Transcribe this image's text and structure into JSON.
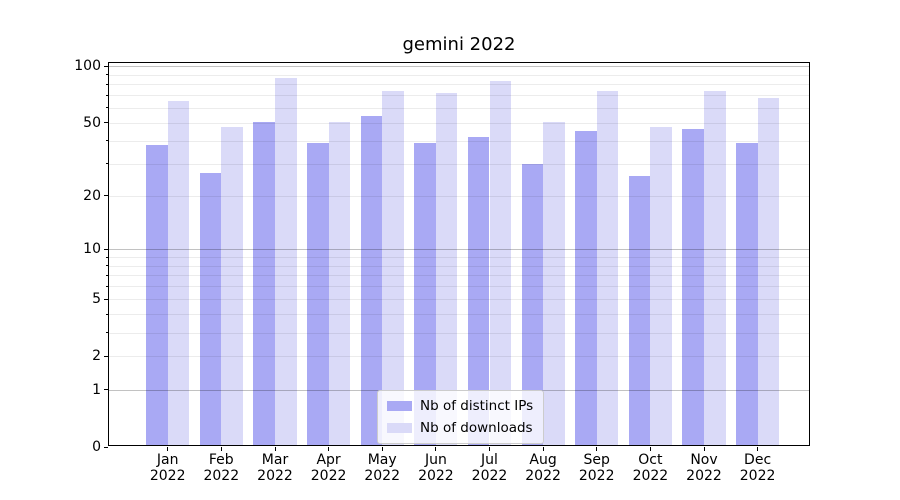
{
  "figure": {
    "title": "gemini 2022",
    "background": "#ffffff"
  },
  "chart_data": {
    "type": "bar",
    "title": "gemini 2022",
    "xlabel": "",
    "ylabel": "",
    "months": [
      "Jan",
      "Feb",
      "Mar",
      "Apr",
      "May",
      "Jun",
      "Jul",
      "Aug",
      "Sep",
      "Oct",
      "Nov",
      "Dec"
    ],
    "year": "2022",
    "categories": [
      "Jan 2022",
      "Feb 2022",
      "Mar 2022",
      "Apr 2022",
      "May 2022",
      "Jun 2022",
      "Jul 2022",
      "Aug 2022",
      "Sep 2022",
      "Oct 2022",
      "Nov 2022",
      "Dec 2022"
    ],
    "series": [
      {
        "name": "Nb of distinct IPs",
        "color": "#a9a9f4",
        "values": [
          37,
          26,
          49,
          38,
          53,
          38,
          41,
          29,
          44,
          25,
          45,
          38
        ]
      },
      {
        "name": "Nb of downloads",
        "color": "#dadaf8",
        "values": [
          64,
          46,
          84,
          49,
          72,
          70,
          81,
          49,
          72,
          46,
          72,
          66
        ]
      }
    ],
    "yscale": "log1p",
    "ylim": [
      0,
      104
    ],
    "yticks": [
      {
        "value": 0,
        "label": "0"
      },
      {
        "value": 1,
        "label": "1"
      },
      {
        "value": 2,
        "label": "2"
      },
      {
        "value": 5,
        "label": "5"
      },
      {
        "value": 10,
        "label": "10"
      },
      {
        "value": 20,
        "label": "20"
      },
      {
        "value": 50,
        "label": "50"
      },
      {
        "value": 100,
        "label": "100"
      }
    ],
    "grid": {
      "enabled": true,
      "major_values": [
        1,
        10,
        100
      ],
      "minor_values": [
        2,
        3,
        4,
        5,
        6,
        7,
        8,
        9,
        20,
        30,
        40,
        50,
        60,
        70,
        80,
        90
      ]
    },
    "legend_position": "lower center",
    "colors": {
      "axis": "#000000",
      "grid_major": "rgba(0,0,0,0.24)",
      "grid_minor": "rgba(0,0,0,0.075)",
      "legend_border": "#cccccc"
    }
  }
}
